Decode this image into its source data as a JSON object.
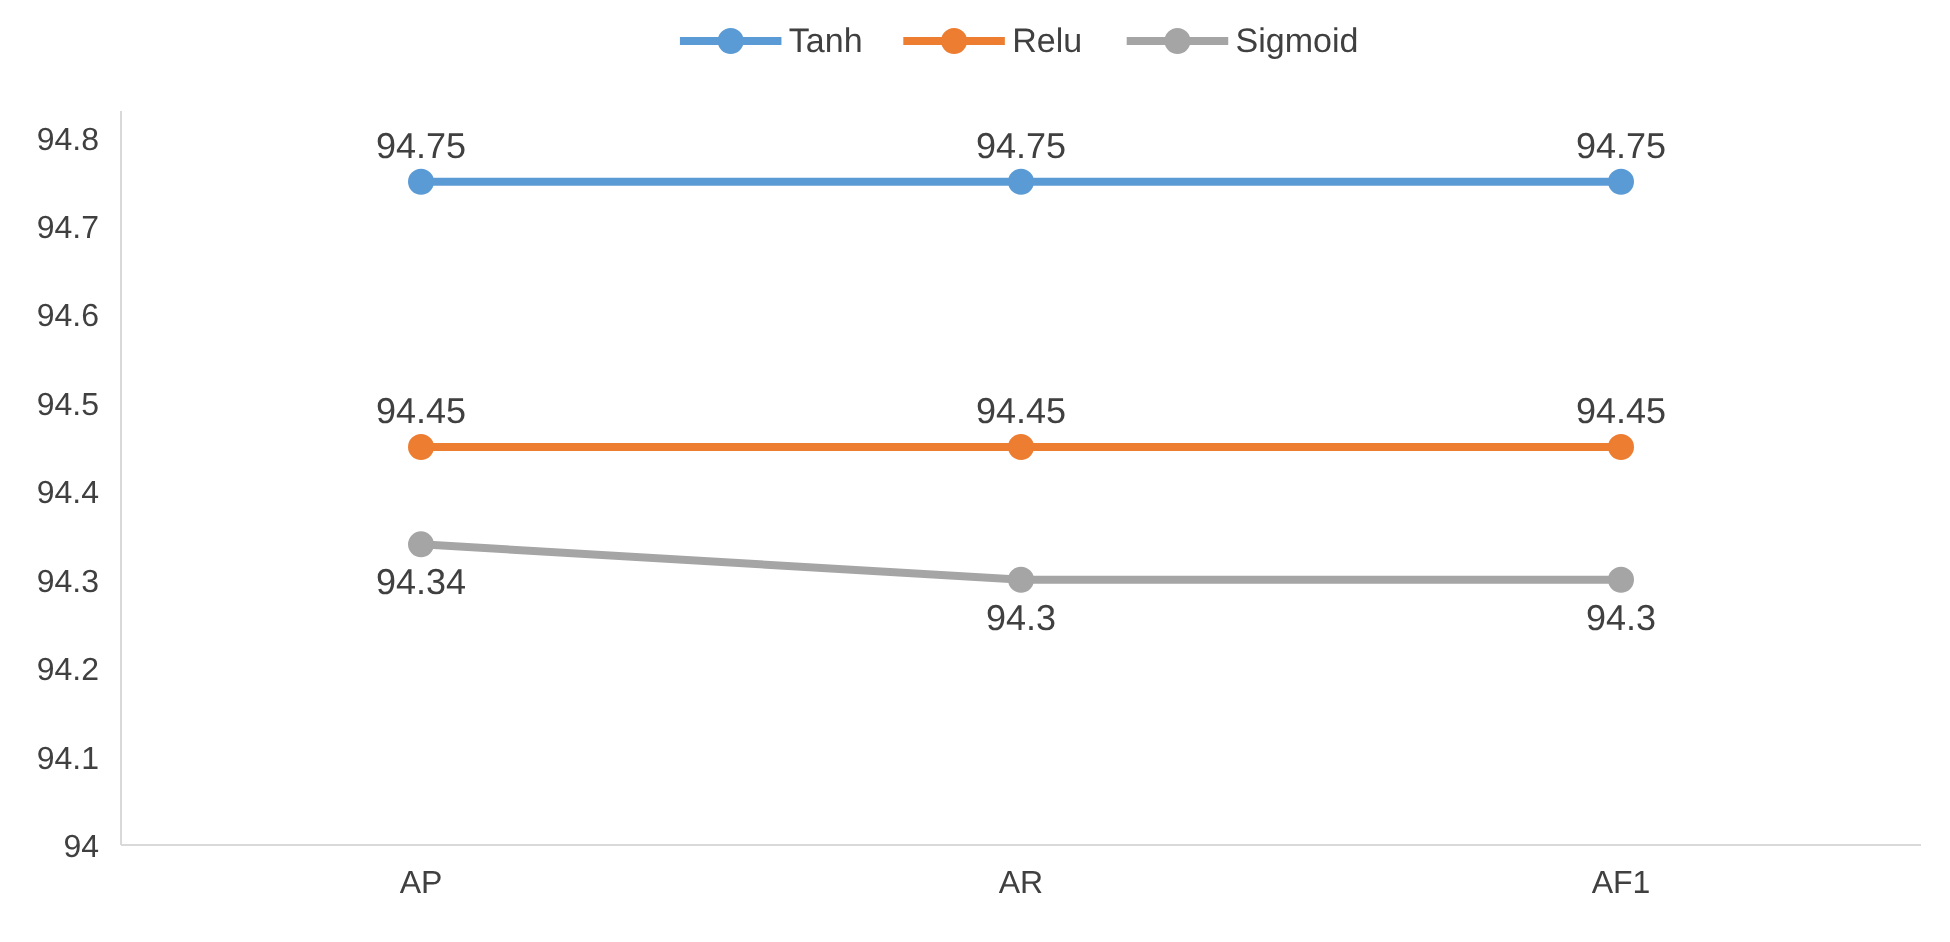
{
  "chart_data": {
    "type": "line",
    "categories": [
      "AP",
      "AR",
      "AF1"
    ],
    "series": [
      {
        "name": "Tanh",
        "color": "#5b9bd5",
        "values": [
          94.75,
          94.75,
          94.75
        ]
      },
      {
        "name": "Relu",
        "color": "#ed7d31",
        "values": [
          94.45,
          94.45,
          94.45
        ]
      },
      {
        "name": "Sigmoid",
        "color": "#a5a5a5",
        "values": [
          94.34,
          94.3,
          94.3
        ]
      }
    ],
    "ylim": [
      94,
      94.83
    ],
    "yticks": [
      94,
      94.1,
      94.2,
      94.3,
      94.4,
      94.5,
      94.6,
      94.7,
      94.8
    ],
    "data_labels": true,
    "legend": "top",
    "grid": false,
    "marker": "circle",
    "line_style": "solid"
  }
}
